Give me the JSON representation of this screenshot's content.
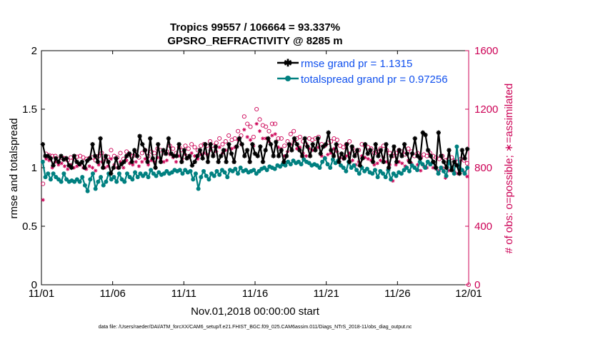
{
  "chart_data": {
    "type": "line",
    "title_line1": "Tropics 99557 / 106664 = 93.337%",
    "title_line2": "GPSRO_REFRACTIVITY @ 8285 m",
    "xlabel": "Nov.01,2018 00:00:00 start",
    "ylabel_left": "rmse and totalspread",
    "ylabel_right": "# of obs: o=possible; ∗=assimilated",
    "footer": "data file: /Users/raeder/DAI/ATM_forcXX/CAM6_setup/f.e21.FHIST_BGC.f09_025.CAM6assim.011/Diags_NTrS_2018-11/obs_diag_output.nc",
    "x_ticks": [
      "11/01",
      "11/06",
      "11/11",
      "11/16",
      "11/21",
      "11/26",
      "12/01"
    ],
    "y_left_ticks": [
      "0",
      "0.5",
      "1",
      "1.5",
      "2"
    ],
    "y_right_ticks": [
      "0",
      "400",
      "800",
      "1200",
      "1600"
    ],
    "xlim_days": [
      0,
      30
    ],
    "ylim_left": [
      0,
      2
    ],
    "ylim_right": [
      0,
      1600
    ],
    "legend": [
      {
        "label": "rmse grand pr = 1.1315",
        "color": "#000000",
        "marker": "star"
      },
      {
        "label": "totalspread grand pr = 0.97256",
        "color": "#008080",
        "marker": "circle"
      }
    ],
    "colors": {
      "rmse": "#000000",
      "spread": "#008080",
      "obs": "#cc0055",
      "legend_text": "#1050ee"
    },
    "series": [
      {
        "name": "rmse",
        "values": [
          1.2,
          1.1,
          1.1,
          1.08,
          1.02,
          1.08,
          1.05,
          1.1,
          1.07,
          1.08,
          1.02,
          1.0,
          1.1,
          1.05,
          1.03,
          1.05,
          1.0,
          1.06,
          1.08,
          1.2,
          1.1,
          1.05,
          1.25,
          1.0,
          1.1,
          1.05,
          0.95,
          1.0,
          1.08,
          1.0,
          1.03,
          1.05,
          1.1,
          1.12,
          1.05,
          1.15,
          1.1,
          1.27,
          1.2,
          1.15,
          1.05,
          1.25,
          1.08,
          1.0,
          1.2,
          1.05,
          1.15,
          1.12,
          1.25,
          1.12,
          1.1,
          1.1,
          1.2,
          1.05,
          1.15,
          1.08,
          1.1,
          1.02,
          1.05,
          1.1,
          1.15,
          1.08,
          1.2,
          1.05,
          1.2,
          1.1,
          1.18,
          1.05,
          1.1,
          1.15,
          1.05,
          1.2,
          1.12,
          1.05,
          1.18,
          1.25,
          1.2,
          1.1,
          1.15,
          1.05,
          1.2,
          1.12,
          1.1,
          1.18,
          1.05,
          1.15,
          1.25,
          1.2,
          1.1,
          1.22,
          1.1,
          1.15,
          1.05,
          1.1,
          1.2,
          1.15,
          1.25,
          1.2,
          1.15,
          1.1,
          1.25,
          1.18,
          1.1,
          1.2,
          1.15,
          1.25,
          1.12,
          1.18,
          1.2,
          1.3,
          1.15,
          1.1,
          1.2,
          1.05,
          1.12,
          1.08,
          1.2,
          1.05,
          1.18,
          1.1,
          1.15,
          1.02,
          1.08,
          1.2,
          1.12,
          1.15,
          1.05,
          1.2,
          1.1,
          1.15,
          1.05,
          1.2,
          1.0,
          1.1,
          1.18,
          1.05,
          1.15,
          1.1,
          1.2,
          1.12,
          1.05,
          1.12,
          1.25,
          1.1,
          1.08,
          1.3,
          1.28,
          1.15,
          1.1,
          1.05,
          1.0,
          1.3,
          1.1,
          1.05,
          1.0,
          1.15,
          0.98,
          1.05,
          1.02,
          0.95,
          1.15,
          1.08,
          1.16
        ]
      },
      {
        "name": "totalspread",
        "values": [
          1.05,
          0.92,
          0.95,
          0.9,
          0.95,
          0.92,
          0.9,
          0.88,
          0.95,
          0.9,
          0.88,
          0.89,
          0.88,
          0.9,
          0.88,
          0.92,
          0.85,
          0.8,
          0.9,
          0.95,
          0.82,
          0.88,
          0.92,
          0.85,
          0.88,
          0.95,
          0.9,
          0.92,
          0.88,
          0.95,
          0.9,
          0.88,
          0.95,
          0.92,
          0.9,
          0.96,
          0.92,
          0.95,
          0.93,
          0.95,
          0.92,
          0.98,
          0.95,
          0.93,
          0.96,
          0.94,
          0.95,
          0.97,
          0.95,
          0.96,
          0.98,
          0.97,
          0.98,
          0.95,
          0.98,
          0.96,
          0.97,
          0.9,
          0.95,
          0.82,
          0.92,
          0.97,
          0.93,
          0.9,
          0.95,
          0.93,
          0.97,
          0.94,
          0.98,
          0.96,
          0.92,
          0.98,
          0.97,
          0.99,
          0.95,
          1.0,
          0.97,
          0.98,
          0.96,
          0.97,
          0.98,
          0.95,
          0.97,
          0.99,
          1.0,
          0.98,
          1.01,
          1.0,
          0.99,
          1.02,
          1.01,
          1.03,
          1.02,
          1.05,
          1.03,
          1.06,
          1.04,
          1.05,
          1.03,
          1.07,
          1.05,
          1.04,
          1.02,
          1.03,
          1.02,
          1.0,
          1.05,
          1.08,
          1.03,
          1.0,
          1.07,
          1.04,
          1.06,
          1.02,
          1.0,
          0.97,
          1.05,
          1.0,
          1.02,
          0.98,
          0.95,
          1.0,
          0.97,
          0.99,
          0.96,
          0.95,
          0.98,
          0.92,
          0.97,
          0.95,
          0.92,
          0.98,
          0.9,
          0.95,
          0.93,
          0.96,
          0.95,
          0.98,
          1.0,
          0.97,
          1.02,
          1.0,
          0.98,
          1.05,
          1.03,
          1.0,
          1.05,
          1.03,
          1.05,
          1.0,
          0.95,
          1.0,
          0.97,
          0.93,
          1.05,
          1.0,
          0.95,
          1.18,
          1.0,
          0.98,
          0.95,
          1.0
        ]
      },
      {
        "name": "obs possible",
        "values": [
          690,
          895,
          885,
          880,
          880,
          860,
          870,
          865,
          850,
          870,
          860,
          875,
          880,
          870,
          860,
          865,
          870,
          850,
          880,
          900,
          860,
          875,
          920,
          880,
          870,
          900,
          860,
          910,
          890,
          880,
          900,
          870,
          900,
          920,
          880,
          910,
          900,
          930,
          920,
          900,
          910,
          950,
          930,
          900,
          940,
          920,
          950,
          930,
          960,
          940,
          920,
          950,
          960,
          950,
          980,
          950,
          970,
          1000,
          960,
          980,
          1020,
          990,
          1000,
          1050,
          1020,
          1150,
          1100,
          1080,
          1010,
          1200,
          1130,
          1090,
          1080,
          1050,
          1100,
          1100,
          1000,
          1000,
          950,
          980,
          1030,
          1050,
          1000,
          1010,
          980,
          960,
          1000,
          990,
          1000,
          1010,
          960,
          950,
          970,
          980,
          1000,
          990,
          950,
          940,
          960,
          980,
          930,
          900,
          920,
          960,
          950,
          940,
          930,
          900,
          910,
          930,
          950,
          920,
          900,
          880,
          900,
          920,
          910,
          890,
          930,
          910,
          880,
          900,
          870,
          890,
          880,
          900,
          880,
          870,
          860,
          880,
          850,
          860,
          870,
          850,
          840,
          860,
          850,
          830
        ]
      },
      {
        "name": "obs assimilated",
        "values": [
          580,
          860,
          850,
          800,
          840,
          820,
          830,
          810,
          790,
          820,
          800,
          810,
          820,
          800,
          790,
          810,
          800,
          780,
          820,
          840,
          800,
          810,
          860,
          820,
          800,
          840,
          800,
          850,
          830,
          820,
          840,
          810,
          840,
          860,
          820,
          850,
          840,
          870,
          860,
          840,
          850,
          890,
          870,
          840,
          880,
          860,
          890,
          870,
          900,
          880,
          860,
          890,
          900,
          890,
          920,
          890,
          910,
          940,
          900,
          920,
          960,
          930,
          940,
          990,
          960,
          1060,
          1010,
          990,
          950,
          1100,
          1050,
          1000,
          1000,
          980,
          1020,
          1030,
          940,
          930,
          880,
          910,
          960,
          980,
          930,
          940,
          900,
          880,
          930,
          920,
          930,
          940,
          880,
          870,
          890,
          900,
          930,
          910,
          870,
          860,
          880,
          900,
          850,
          820,
          840,
          880,
          870,
          860,
          850,
          820,
          830,
          850,
          870,
          840,
          820,
          710,
          820,
          840,
          830,
          810,
          850,
          830,
          800,
          820,
          780,
          810,
          800,
          820,
          800,
          790,
          780,
          800,
          730,
          780,
          790,
          770,
          760,
          780,
          770,
          740
        ]
      }
    ]
  }
}
